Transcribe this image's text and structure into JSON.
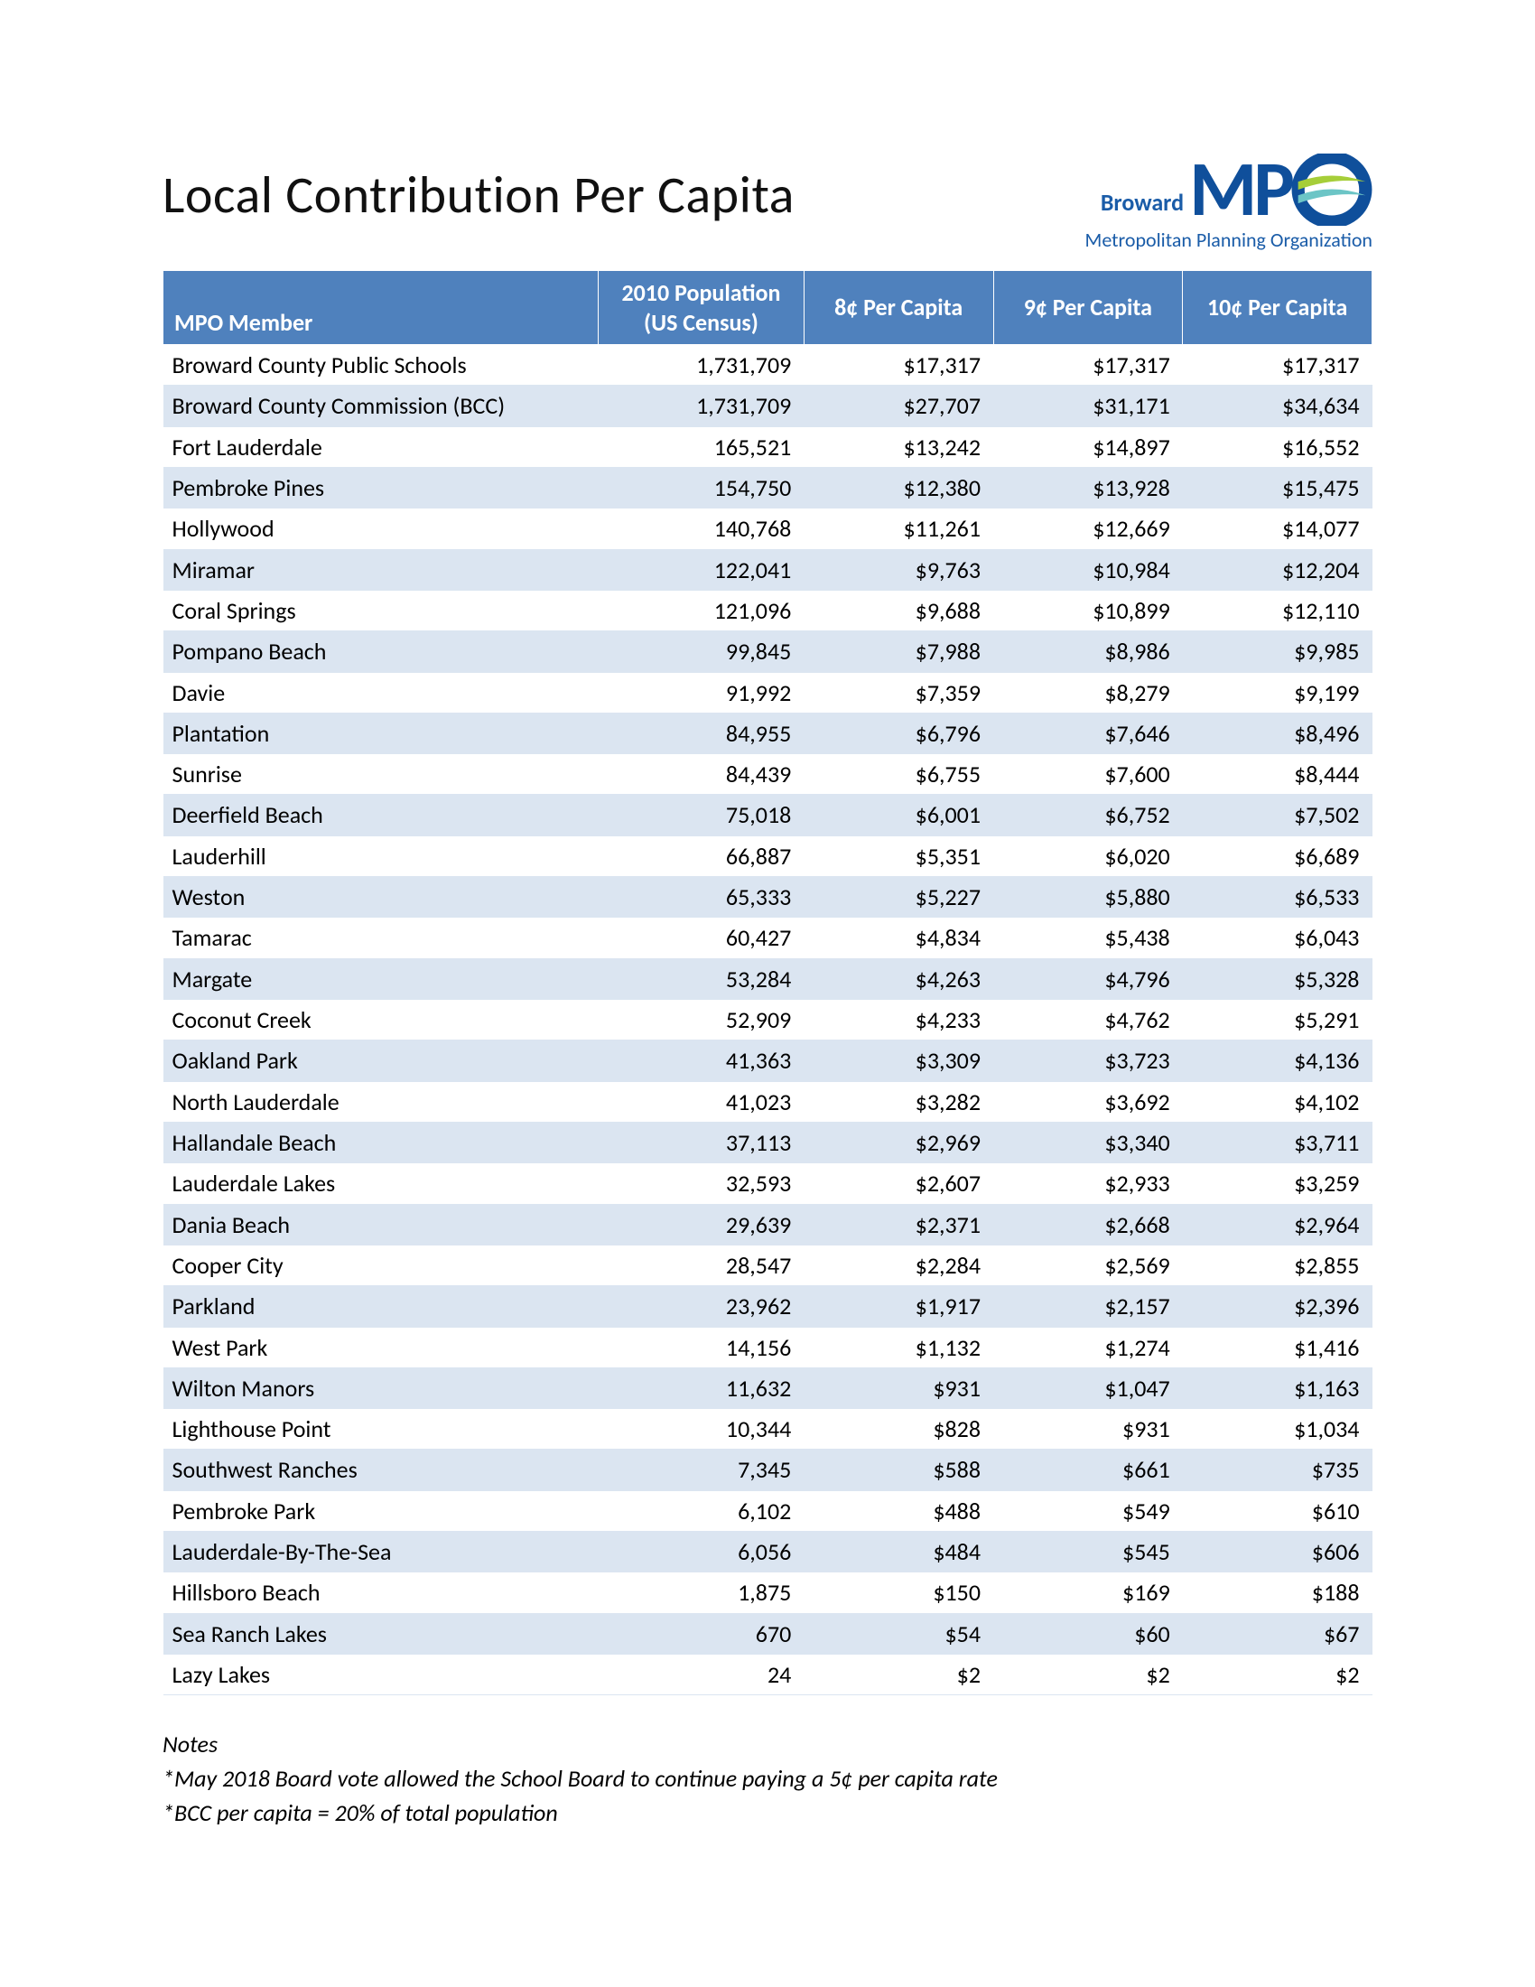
{
  "title": "Local Contribution Per Capita",
  "logo": {
    "broward": "Broward",
    "mpo": "MP",
    "sub": "Metropolitan Planning Organization",
    "colors": {
      "brand": "#0f4f9b",
      "accent": "#1a5ca8",
      "green": "#a6ce39",
      "teal": "#6cc5c6"
    }
  },
  "table": {
    "header_bg": "#4f81bd",
    "header_fg": "#ffffff",
    "row_odd_bg": "#ffffff",
    "row_even_bg": "#dbe5f1",
    "columns": [
      "MPO Member",
      "2010 Population (US Census)",
      "8¢ Per Capita",
      "9¢ Per Capita",
      "10¢ Per Capita"
    ],
    "rows": [
      {
        "member": "Broward County Public Schools",
        "pop": "1,731,709",
        "c8": "$17,317",
        "c9": "$17,317",
        "c10": "$17,317"
      },
      {
        "member": "Broward County Commission (BCC)",
        "pop": "1,731,709",
        "c8": "$27,707",
        "c9": "$31,171",
        "c10": "$34,634"
      },
      {
        "member": "Fort Lauderdale",
        "pop": "165,521",
        "c8": "$13,242",
        "c9": "$14,897",
        "c10": "$16,552"
      },
      {
        "member": "Pembroke Pines",
        "pop": "154,750",
        "c8": "$12,380",
        "c9": "$13,928",
        "c10": "$15,475"
      },
      {
        "member": "Hollywood",
        "pop": "140,768",
        "c8": "$11,261",
        "c9": "$12,669",
        "c10": "$14,077"
      },
      {
        "member": "Miramar",
        "pop": "122,041",
        "c8": "$9,763",
        "c9": "$10,984",
        "c10": "$12,204"
      },
      {
        "member": "Coral Springs",
        "pop": "121,096",
        "c8": "$9,688",
        "c9": "$10,899",
        "c10": "$12,110"
      },
      {
        "member": "Pompano Beach",
        "pop": "99,845",
        "c8": "$7,988",
        "c9": "$8,986",
        "c10": "$9,985"
      },
      {
        "member": "Davie",
        "pop": "91,992",
        "c8": "$7,359",
        "c9": "$8,279",
        "c10": "$9,199"
      },
      {
        "member": "Plantation",
        "pop": "84,955",
        "c8": "$6,796",
        "c9": "$7,646",
        "c10": "$8,496"
      },
      {
        "member": "Sunrise",
        "pop": "84,439",
        "c8": "$6,755",
        "c9": "$7,600",
        "c10": "$8,444"
      },
      {
        "member": "Deerfield Beach",
        "pop": "75,018",
        "c8": "$6,001",
        "c9": "$6,752",
        "c10": "$7,502"
      },
      {
        "member": "Lauderhill",
        "pop": "66,887",
        "c8": "$5,351",
        "c9": "$6,020",
        "c10": "$6,689"
      },
      {
        "member": "Weston",
        "pop": "65,333",
        "c8": "$5,227",
        "c9": "$5,880",
        "c10": "$6,533"
      },
      {
        "member": "Tamarac",
        "pop": "60,427",
        "c8": "$4,834",
        "c9": "$5,438",
        "c10": "$6,043"
      },
      {
        "member": "Margate",
        "pop": "53,284",
        "c8": "$4,263",
        "c9": "$4,796",
        "c10": "$5,328"
      },
      {
        "member": "Coconut Creek",
        "pop": "52,909",
        "c8": "$4,233",
        "c9": "$4,762",
        "c10": "$5,291"
      },
      {
        "member": "Oakland Park",
        "pop": "41,363",
        "c8": "$3,309",
        "c9": "$3,723",
        "c10": "$4,136"
      },
      {
        "member": "North Lauderdale",
        "pop": "41,023",
        "c8": "$3,282",
        "c9": "$3,692",
        "c10": "$4,102"
      },
      {
        "member": "Hallandale Beach",
        "pop": "37,113",
        "c8": "$2,969",
        "c9": "$3,340",
        "c10": "$3,711"
      },
      {
        "member": "Lauderdale Lakes",
        "pop": "32,593",
        "c8": "$2,607",
        "c9": "$2,933",
        "c10": "$3,259"
      },
      {
        "member": "Dania Beach",
        "pop": "29,639",
        "c8": "$2,371",
        "c9": "$2,668",
        "c10": "$2,964"
      },
      {
        "member": "Cooper City",
        "pop": "28,547",
        "c8": "$2,284",
        "c9": "$2,569",
        "c10": "$2,855"
      },
      {
        "member": "Parkland",
        "pop": "23,962",
        "c8": "$1,917",
        "c9": "$2,157",
        "c10": "$2,396"
      },
      {
        "member": "West Park",
        "pop": "14,156",
        "c8": "$1,132",
        "c9": "$1,274",
        "c10": "$1,416"
      },
      {
        "member": "Wilton Manors",
        "pop": "11,632",
        "c8": "$931",
        "c9": "$1,047",
        "c10": "$1,163"
      },
      {
        "member": "Lighthouse Point",
        "pop": "10,344",
        "c8": "$828",
        "c9": "$931",
        "c10": "$1,034"
      },
      {
        "member": "Southwest Ranches",
        "pop": "7,345",
        "c8": "$588",
        "c9": "$661",
        "c10": "$735"
      },
      {
        "member": "Pembroke Park",
        "pop": "6,102",
        "c8": "$488",
        "c9": "$549",
        "c10": "$610"
      },
      {
        "member": "Lauderdale-By-The-Sea",
        "pop": "6,056",
        "c8": "$484",
        "c9": "$545",
        "c10": "$606"
      },
      {
        "member": "Hillsboro Beach",
        "pop": "1,875",
        "c8": "$150",
        "c9": "$169",
        "c10": "$188"
      },
      {
        "member": "Sea Ranch Lakes",
        "pop": "670",
        "c8": "$54",
        "c9": "$60",
        "c10": "$67"
      },
      {
        "member": "Lazy Lakes",
        "pop": "24",
        "c8": "$2",
        "c9": "$2",
        "c10": "$2"
      }
    ]
  },
  "notes": {
    "heading": "Notes",
    "items": [
      "*May 2018 Board vote allowed the School Board to continue paying a 5¢ per capita rate",
      "*BCC per capita = 20% of total population"
    ]
  }
}
